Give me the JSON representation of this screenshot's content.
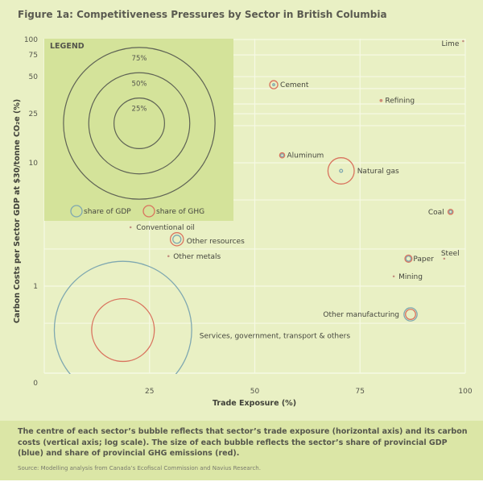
{
  "title": "Figure 1a: Competitiveness Pressures by Sector in British Columbia",
  "chart_data": {
    "type": "bubble-scatter",
    "title": "Figure 1a: Competitiveness Pressures by Sector in British Columbia",
    "xlabel": "Trade Exposure (%)",
    "ylabel": "Carbon Costs per Sector GDP at $30/tonne CO₂e (%)",
    "xlim": [
      0,
      100
    ],
    "ylim": [
      0.15,
      100
    ],
    "yscale": "log",
    "x_ticks": [
      "25",
      "50",
      "75",
      "100"
    ],
    "x_tick_values": [
      25,
      50,
      75,
      100
    ],
    "y_ticks": [
      "100",
      "75",
      "50",
      "25",
      "10",
      "1",
      "0"
    ],
    "y_tick_values": [
      100,
      75,
      50,
      25,
      10,
      1,
      0.15
    ],
    "grid": true,
    "series": [
      {
        "name": "Lime",
        "x": 99.5,
        "y": 97,
        "gdp_share": 0.3,
        "ghg_share": 1.0
      },
      {
        "name": "Cement",
        "x": 54.5,
        "y": 43,
        "gdp_share": 1.0,
        "ghg_share": 4.0
      },
      {
        "name": "Refining",
        "x": 80,
        "y": 32,
        "gdp_share": 0.5,
        "ghg_share": 1.5
      },
      {
        "name": "Aluminum",
        "x": 56.5,
        "y": 11.5,
        "gdp_share": 1.5,
        "ghg_share": 2.5
      },
      {
        "name": "Natural gas",
        "x": 70.5,
        "y": 8.6,
        "gdp_share": 1.5,
        "ghg_share": 13
      },
      {
        "name": "Coal",
        "x": 96.5,
        "y": 4.0,
        "gdp_share": 1.5,
        "ghg_share": 2.5
      },
      {
        "name": "Conventional  oil",
        "x": 20.5,
        "y": 3.0,
        "gdp_share": 0.5,
        "ghg_share": 1.0
      },
      {
        "name": "Other resources",
        "x": 31.5,
        "y": 2.4,
        "gdp_share": 4.0,
        "ghg_share": 6.5
      },
      {
        "name": "Other metals",
        "x": 29.5,
        "y": 1.75,
        "gdp_share": 0.3,
        "ghg_share": 1.0
      },
      {
        "name": "Paper",
        "x": 86.5,
        "y": 1.67,
        "gdp_share": 2.5,
        "ghg_share": 3.5
      },
      {
        "name": "Steel",
        "x": 95,
        "y": 1.67,
        "gdp_share": 0.3,
        "ghg_share": 1.0
      },
      {
        "name": "Mining",
        "x": 83,
        "y": 1.2,
        "gdp_share": 0.5,
        "ghg_share": 1.0
      },
      {
        "name": "Other manufacturing",
        "x": 87,
        "y": 0.59,
        "gdp_share": 6.5,
        "ghg_share": 5.0
      },
      {
        "name": "Services, government, transport & others",
        "x": 18.7,
        "y": 0.44,
        "gdp_share": 68,
        "ghg_share": 31
      }
    ],
    "legend": {
      "title": "LEGEND",
      "placement": "top-left",
      "size_rings": [
        "75%",
        "50%",
        "25%"
      ],
      "size_ring_values": [
        75,
        50,
        25
      ],
      "entries": [
        {
          "label": "share of GDP",
          "color": "#7fa8b0"
        },
        {
          "label": "share of GHG",
          "color": "#d9735e"
        }
      ]
    }
  },
  "colors": {
    "gdp": "#7fa8b0",
    "ghg": "#d9735e",
    "background": "#e9f0c4",
    "legend_bg": "#d4e39a",
    "grid": "#f6f9e4"
  },
  "caption": {
    "text": "The centre of each sector’s bubble reflects that sector’s trade exposure (horizontal axis) and its carbon costs (vertical axis; log scale). The size of each bubble reflects the sector’s share of provincial GDP (blue) and share of provincial GHG emissions (red).",
    "source": "Source: Modelling analysis from Canada’s Ecofiscal Commission and Navius Research."
  }
}
